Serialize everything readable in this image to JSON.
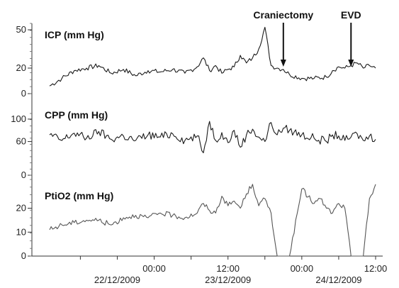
{
  "chart_data": {
    "type": "line",
    "x_axis": {
      "tick_labels": [
        "00:00",
        "12:00",
        "00:00",
        "12:00"
      ],
      "date_labels": [
        "22/12/2009",
        "23/12/2009",
        "24/12/2009"
      ],
      "range": [
        "2009-12-22T07:00",
        "2009-12-24T12:00"
      ]
    },
    "panels": [
      {
        "name": "ICP (mm Hg)",
        "ylim": [
          0,
          55
        ],
        "yticks": [
          0,
          20,
          50
        ],
        "color": "#1a1a1a",
        "x": [
          "2009-12-22T07:00",
          "2009-12-22T09:00",
          "2009-12-22T11:00",
          "2009-12-22T13:00",
          "2009-12-22T15:00",
          "2009-12-22T17:00",
          "2009-12-22T19:00",
          "2009-12-22T21:00",
          "2009-12-22T23:00",
          "2009-12-23T01:00",
          "2009-12-23T03:00",
          "2009-12-23T05:00",
          "2009-12-23T07:00",
          "2009-12-23T08:00",
          "2009-12-23T09:00",
          "2009-12-23T10:00",
          "2009-12-23T11:00",
          "2009-12-23T12:00",
          "2009-12-23T13:00",
          "2009-12-23T14:00",
          "2009-12-23T15:00",
          "2009-12-23T16:00",
          "2009-12-23T17:00",
          "2009-12-23T18:00",
          "2009-12-23T19:00",
          "2009-12-23T20:00",
          "2009-12-23T21:00",
          "2009-12-23T22:00",
          "2009-12-24T00:00",
          "2009-12-24T02:00",
          "2009-12-24T04:00",
          "2009-12-24T05:00",
          "2009-12-24T06:00",
          "2009-12-24T07:00",
          "2009-12-24T08:00",
          "2009-12-24T09:00",
          "2009-12-24T10:00",
          "2009-12-24T11:00",
          "2009-12-24T12:00"
        ],
        "values": [
          6,
          12,
          18,
          20,
          22,
          16,
          19,
          14,
          18,
          17,
          19,
          16,
          21,
          28,
          18,
          22,
          16,
          19,
          21,
          30,
          24,
          28,
          35,
          52,
          22,
          20,
          19,
          15,
          12,
          12,
          13,
          18,
          21,
          20,
          22,
          24,
          20,
          22,
          20
        ]
      },
      {
        "name": "CPP (mm Hg)",
        "ylim": [
          0,
          110
        ],
        "yticks": [
          0,
          60,
          100
        ],
        "color": "#1a1a1a",
        "x": [
          "2009-12-22T07:00",
          "2009-12-22T09:00",
          "2009-12-22T11:00",
          "2009-12-22T13:00",
          "2009-12-22T15:00",
          "2009-12-22T17:00",
          "2009-12-22T19:00",
          "2009-12-22T21:00",
          "2009-12-22T23:00",
          "2009-12-23T01:00",
          "2009-12-23T03:00",
          "2009-12-23T05:00",
          "2009-12-23T07:00",
          "2009-12-23T08:00",
          "2009-12-23T09:00",
          "2009-12-23T10:00",
          "2009-12-23T11:00",
          "2009-12-23T12:00",
          "2009-12-23T13:00",
          "2009-12-23T14:00",
          "2009-12-23T15:00",
          "2009-12-23T16:00",
          "2009-12-23T17:00",
          "2009-12-23T18:00",
          "2009-12-23T19:00",
          "2009-12-23T20:00",
          "2009-12-23T21:00",
          "2009-12-23T22:00",
          "2009-12-24T00:00",
          "2009-12-24T02:00",
          "2009-12-24T04:00",
          "2009-12-24T05:00",
          "2009-12-24T06:00",
          "2009-12-24T07:00",
          "2009-12-24T08:00",
          "2009-12-24T09:00",
          "2009-12-24T10:00",
          "2009-12-24T11:00",
          "2009-12-24T12:00"
        ],
        "values": [
          72,
          62,
          75,
          66,
          78,
          64,
          70,
          62,
          72,
          68,
          74,
          62,
          70,
          40,
          96,
          62,
          76,
          58,
          80,
          50,
          72,
          82,
          68,
          60,
          94,
          72,
          84,
          80,
          72,
          66,
          60,
          72,
          70,
          62,
          68,
          74,
          62,
          70,
          64
        ]
      },
      {
        "name": "PtiO2 (mm Hg)",
        "ylim": [
          0,
          32
        ],
        "yticks": [
          0,
          10,
          20
        ],
        "color": "#555555",
        "x": [
          "2009-12-22T07:00",
          "2009-12-22T09:00",
          "2009-12-22T11:00",
          "2009-12-22T13:00",
          "2009-12-22T15:00",
          "2009-12-22T17:00",
          "2009-12-22T19:00",
          "2009-12-22T21:00",
          "2009-12-22T23:00",
          "2009-12-23T01:00",
          "2009-12-23T03:00",
          "2009-12-23T05:00",
          "2009-12-23T07:00",
          "2009-12-23T08:00",
          "2009-12-23T09:00",
          "2009-12-23T10:00",
          "2009-12-23T11:00",
          "2009-12-23T12:00",
          "2009-12-23T13:00",
          "2009-12-23T14:00",
          "2009-12-23T15:00",
          "2009-12-23T16:00",
          "2009-12-23T17:00",
          "2009-12-23T18:00",
          "2009-12-23T19:00",
          "2009-12-23T20:00",
          "2009-12-23T21:00",
          "2009-12-23T22:00",
          "2009-12-24T00:00",
          "2009-12-24T02:00",
          "2009-12-24T03:00",
          "2009-12-24T04:00",
          "2009-12-24T05:00",
          "2009-12-24T06:00",
          "2009-12-24T07:00",
          "2009-12-24T08:00",
          "2009-12-24T09:00",
          "2009-12-24T10:00",
          "2009-12-24T11:00",
          "2009-12-24T12:00"
        ],
        "values": [
          11,
          13,
          14,
          15,
          15,
          13,
          16,
          17,
          16,
          18,
          17,
          16,
          18,
          22,
          19,
          18,
          25,
          21,
          23,
          20,
          26,
          30,
          21,
          24,
          18,
          0,
          0,
          0,
          28,
          22,
          24,
          20,
          18,
          22,
          20,
          0,
          0,
          0,
          24,
          30
        ]
      }
    ],
    "annotations": [
      {
        "label": "Craniectomy",
        "x": "2009-12-23T21:00",
        "panel": 0
      },
      {
        "label": "EVD",
        "x": "2009-12-24T08:00",
        "panel": 0
      }
    ],
    "grid": false
  }
}
